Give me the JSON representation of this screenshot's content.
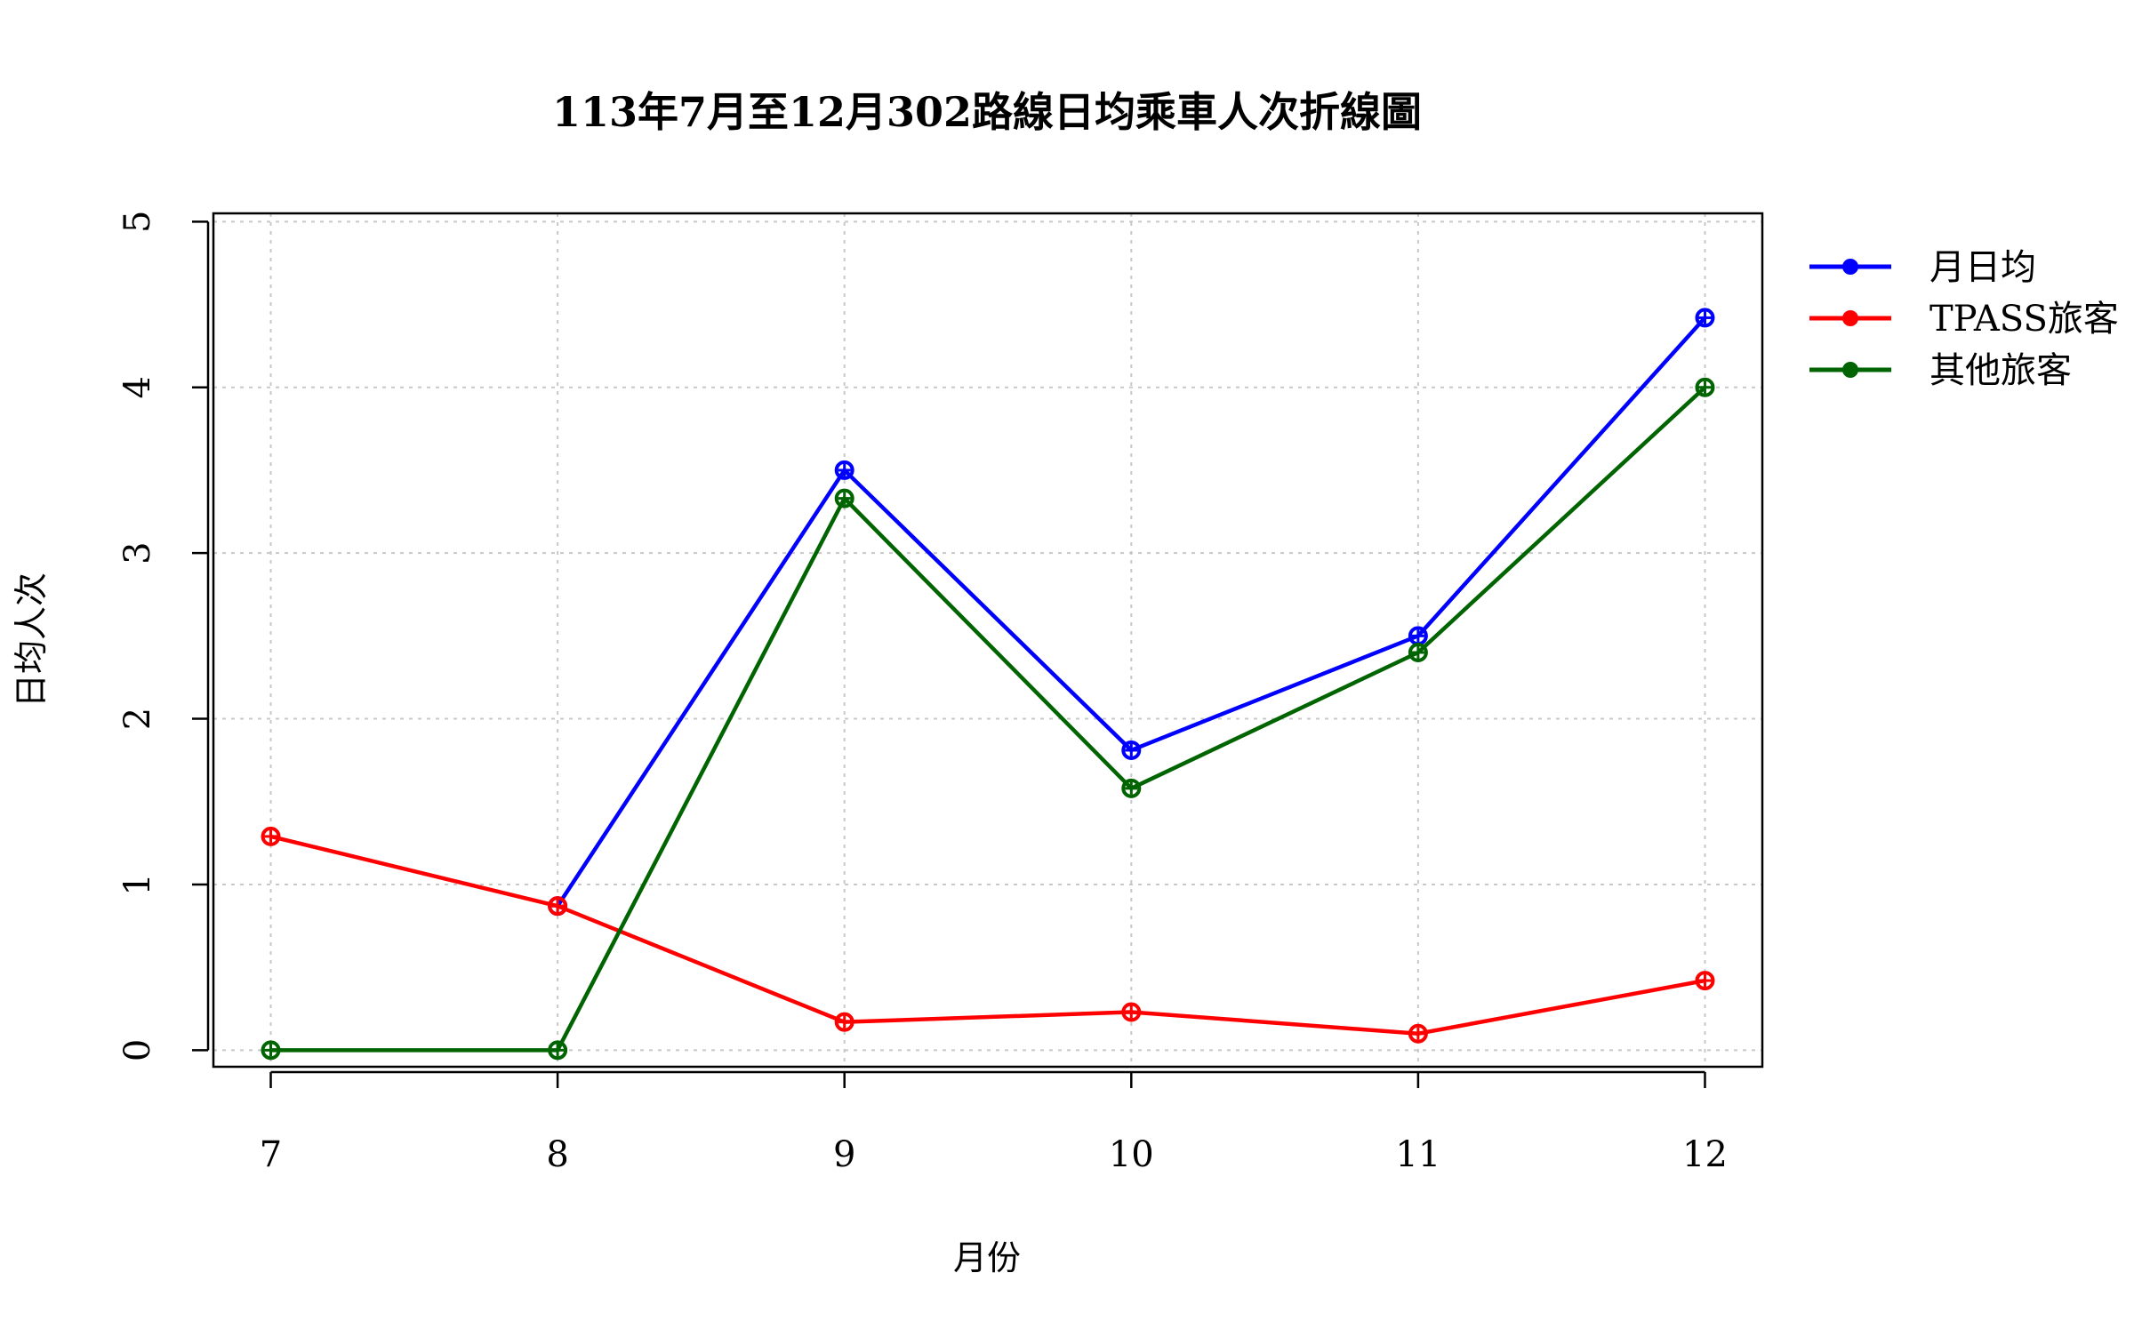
{
  "chart_data": {
    "type": "line",
    "title": "113年7月至12月302路線日均乘車人次折線圖",
    "xlabel": "月份",
    "ylabel": "日均人次",
    "x": [
      7,
      8,
      9,
      10,
      11,
      12
    ],
    "x_tick_labels": [
      "7",
      "8",
      "9",
      "10",
      "11",
      "12"
    ],
    "y_ticks": [
      0,
      1,
      2,
      3,
      4,
      5
    ],
    "y_tick_labels": [
      "0",
      "1",
      "2",
      "3",
      "4",
      "5"
    ],
    "xlim": [
      6.8,
      12.2
    ],
    "ylim": [
      -0.1,
      5.05
    ],
    "grid": true,
    "legend_position": "outside-right",
    "series": [
      {
        "name": "月日均",
        "color": "#0000ff",
        "values": [
          null,
          0.87,
          3.5,
          1.81,
          2.5,
          4.42
        ]
      },
      {
        "name": "TPASS旅客",
        "color": "#ff0000",
        "values": [
          1.29,
          0.87,
          0.17,
          0.23,
          0.1,
          0.42
        ]
      },
      {
        "name": "其他旅客",
        "color": "#006400",
        "values": [
          0,
          0,
          3.33,
          1.58,
          2.4,
          4.0
        ]
      }
    ]
  }
}
